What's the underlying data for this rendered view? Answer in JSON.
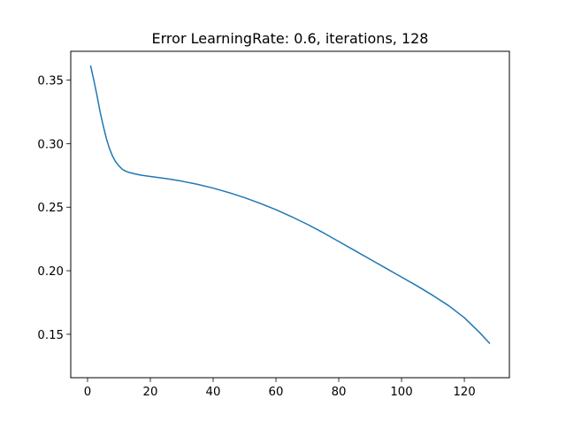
{
  "chart_data": {
    "type": "line",
    "title": "Error LearningRate: 0.6, iterations, 128",
    "xlabel": "",
    "ylabel": "",
    "xlim": [
      -5.35,
      134.35
    ],
    "ylim": [
      0.1158,
      0.3727
    ],
    "xticks": [
      0,
      20,
      40,
      60,
      80,
      100,
      120
    ],
    "yticks": [
      0.15,
      0.2,
      0.25,
      0.3,
      0.35
    ],
    "xtick_labels": [
      "0",
      "20",
      "40",
      "60",
      "80",
      "100",
      "120"
    ],
    "ytick_labels": [
      "0.15",
      "0.20",
      "0.25",
      "0.30",
      "0.35"
    ],
    "grid": false,
    "legend": "none",
    "series": [
      {
        "color": "#1f77b4",
        "x": [
          1,
          2,
          3,
          4,
          5,
          6,
          7,
          8,
          9,
          10,
          11,
          12,
          13,
          15,
          17,
          20,
          25,
          30,
          35,
          40,
          45,
          50,
          55,
          60,
          65,
          70,
          75,
          80,
          85,
          90,
          95,
          100,
          105,
          110,
          115,
          120,
          125,
          128
        ],
        "y": [
          0.361,
          0.35,
          0.338,
          0.325,
          0.314,
          0.304,
          0.296,
          0.29,
          0.2855,
          0.2825,
          0.28,
          0.2785,
          0.2775,
          0.2763,
          0.2752,
          0.2742,
          0.2725,
          0.2705,
          0.268,
          0.265,
          0.2615,
          0.2575,
          0.253,
          0.248,
          0.2425,
          0.2365,
          0.23,
          0.223,
          0.216,
          0.209,
          0.202,
          0.195,
          0.188,
          0.1805,
          0.1725,
          0.163,
          0.151,
          0.143
        ]
      }
    ]
  }
}
